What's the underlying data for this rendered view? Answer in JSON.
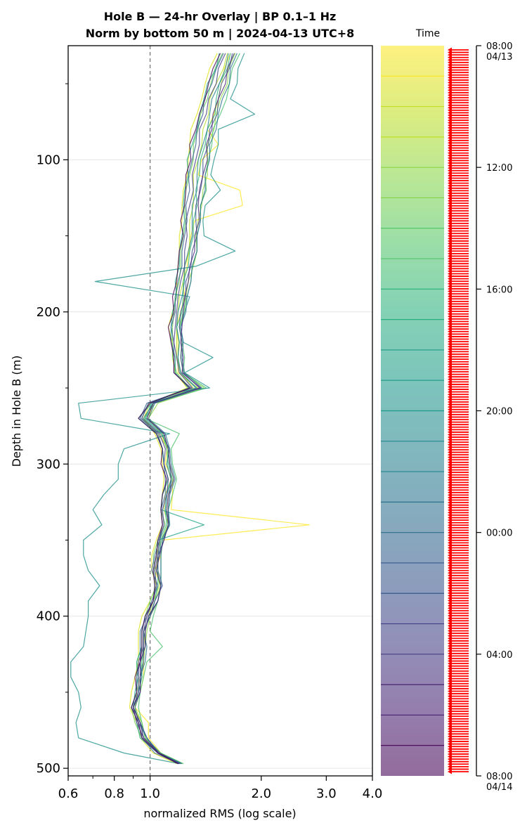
{
  "chart_data": {
    "type": "line",
    "title_line1": "Hole B — 24-hr Overlay  |  BP 0.1–1 Hz",
    "title_line2": "Norm by bottom 50 m  |  2024-04-13 UTC+8",
    "xlabel": "normalized RMS  (log scale)",
    "ylabel": "Depth in Hole B (m)",
    "x_scale": "log",
    "xlim": [
      0.6,
      4.0
    ],
    "ylim": [
      505,
      25
    ],
    "x_ticks": [
      0.6,
      0.8,
      1.0,
      2.0,
      3.0,
      4.0
    ],
    "x_tick_labels": [
      "0.6",
      "0.8",
      "1.0",
      "2.0",
      "3.0",
      "4.0"
    ],
    "y_ticks": [
      100,
      200,
      300,
      400,
      500
    ],
    "y_tick_labels": [
      "100",
      "200",
      "300",
      "400",
      "500"
    ],
    "reference_line_x": 1.0,
    "grid": "horizontal",
    "depth_grid_m": [
      30,
      40,
      50,
      60,
      70,
      80,
      90,
      100,
      110,
      120,
      130,
      140,
      150,
      160,
      170,
      180,
      190,
      200,
      210,
      220,
      230,
      240,
      250,
      260,
      270,
      280,
      290,
      300,
      310,
      320,
      330,
      340,
      350,
      360,
      370,
      380,
      390,
      400,
      410,
      420,
      430,
      440,
      450,
      460,
      470,
      480,
      490,
      497
    ],
    "base_profile_rms": [
      1.6,
      1.55,
      1.5,
      1.45,
      1.42,
      1.38,
      1.35,
      1.33,
      1.31,
      1.3,
      1.28,
      1.27,
      1.26,
      1.25,
      1.23,
      1.21,
      1.2,
      1.18,
      1.16,
      1.17,
      1.18,
      1.19,
      1.3,
      1.0,
      0.95,
      1.05,
      1.1,
      1.1,
      1.12,
      1.1,
      1.08,
      1.1,
      1.06,
      1.04,
      1.03,
      1.05,
      1.02,
      0.98,
      0.95,
      0.96,
      0.94,
      0.93,
      0.92,
      0.9,
      0.93,
      0.96,
      1.05,
      1.2
    ],
    "series": [
      {
        "t": "08:00",
        "color": "#fde725",
        "dev": [
          0.05,
          0.04,
          0.06,
          0.08,
          0.07,
          0.05,
          0.18,
          0.05,
          0.04,
          0.45,
          0.5,
          0.05,
          0.03,
          0.02,
          0.03,
          0.02,
          0.04,
          0.03,
          0.02,
          0.02,
          0.01,
          0.0,
          0.05,
          0.02,
          0.04,
          0.02,
          0.01,
          0.0,
          0.03,
          0.05,
          0.06,
          1.6,
          0.02,
          0.03,
          0.0,
          0.02,
          0.03,
          0.02,
          0.01,
          0.0,
          0.02,
          0.03,
          0.02,
          0.01,
          0.06,
          0.03,
          0.02,
          0.0
        ]
      },
      {
        "t": "09:00",
        "color": "#dfe318",
        "dev": [
          -0.08,
          -0.1,
          -0.09,
          -0.07,
          -0.08,
          -0.09,
          -0.07,
          -0.06,
          -0.05,
          -0.07,
          -0.06,
          -0.05,
          -0.06,
          -0.05,
          -0.04,
          -0.03,
          -0.02,
          -0.03,
          -0.04,
          -0.02,
          -0.03,
          -0.02,
          -0.04,
          0.0,
          0.01,
          -0.02,
          -0.03,
          -0.02,
          -0.03,
          -0.02,
          -0.01,
          -0.02,
          -0.02,
          -0.03,
          -0.02,
          -0.01,
          -0.02,
          -0.03,
          -0.02,
          -0.03,
          -0.01,
          -0.02,
          -0.03,
          -0.02,
          -0.01,
          -0.02,
          -0.03,
          -0.02
        ]
      },
      {
        "t": "10:00",
        "color": "#b5de2b",
        "dev": [
          0.02,
          0.03,
          0.01,
          0.0,
          0.02,
          0.01,
          0.03,
          0.02,
          0.0,
          0.01,
          0.03,
          0.01,
          0.02,
          0.03,
          0.01,
          0.02,
          0.0,
          0.01,
          0.02,
          0.01,
          0.0,
          0.02,
          0.01,
          0.02,
          0.01,
          0.0,
          0.02,
          0.01,
          0.02,
          0.0,
          0.01,
          0.02,
          0.01,
          0.0,
          0.02,
          0.01,
          0.0,
          0.01,
          0.02,
          0.0,
          0.01,
          0.02,
          0.01,
          0.0,
          0.02,
          0.01,
          0.0,
          0.01
        ]
      },
      {
        "t": "11:00",
        "color": "#8fd744",
        "dev": [
          0.1,
          0.08,
          0.12,
          0.1,
          0.09,
          0.11,
          0.08,
          0.1,
          0.12,
          0.09,
          0.1,
          0.08,
          0.07,
          0.09,
          0.08,
          0.06,
          0.05,
          0.06,
          0.04,
          0.05,
          0.03,
          0.04,
          0.1,
          0.05,
          0.04,
          0.03,
          0.02,
          0.03,
          0.04,
          0.02,
          0.03,
          0.02,
          0.01,
          0.02,
          0.01,
          0.02,
          0.01,
          0.02,
          0.03,
          0.01,
          0.02,
          0.01,
          0.0,
          0.01,
          0.02,
          0.01,
          0.02,
          0.03
        ]
      },
      {
        "t": "12:00",
        "color": "#6ccd5a",
        "dev": [
          -0.03,
          -0.05,
          -0.04,
          -0.02,
          -0.05,
          -0.03,
          -0.04,
          -0.02,
          -0.03,
          -0.05,
          -0.04,
          -0.02,
          -0.03,
          -0.04,
          -0.02,
          -0.01,
          -0.03,
          -0.02,
          -0.01,
          -0.02,
          -0.03,
          -0.01,
          -0.02,
          -0.01,
          0.0,
          -0.01,
          -0.02,
          -0.01,
          0.0,
          -0.02,
          -0.01,
          0.0,
          -0.01,
          -0.02,
          0.0,
          -0.01,
          -0.02,
          -0.01,
          0.0,
          -0.01,
          -0.02,
          -0.01,
          0.0,
          -0.01,
          -0.02,
          -0.01,
          0.0,
          -0.01
        ]
      },
      {
        "t": "13:00",
        "color": "#4ac16d",
        "dev": [
          0.15,
          0.12,
          0.14,
          0.16,
          0.13,
          0.1,
          0.12,
          0.11,
          0.1,
          0.12,
          0.09,
          0.1,
          0.08,
          0.09,
          0.07,
          0.08,
          0.06,
          0.05,
          0.04,
          0.05,
          0.06,
          0.04,
          0.12,
          0.03,
          0.02,
          0.15,
          0.04,
          0.05,
          0.06,
          0.05,
          0.04,
          0.03,
          0.02,
          0.03,
          0.04,
          0.02,
          0.03,
          0.04,
          0.05,
          0.12,
          0.04,
          0.03,
          0.02,
          0.03,
          0.02,
          0.01,
          0.02,
          0.03
        ]
      },
      {
        "t": "14:00",
        "color": "#2db27d",
        "dev": [
          0.05,
          0.07,
          0.04,
          0.06,
          0.08,
          0.05,
          0.06,
          0.04,
          0.05,
          0.03,
          0.06,
          0.04,
          0.05,
          0.03,
          0.04,
          0.02,
          0.03,
          0.04,
          0.02,
          0.03,
          0.01,
          0.02,
          0.04,
          0.01,
          0.02,
          0.03,
          0.01,
          0.02,
          0.03,
          0.01,
          0.02,
          0.01,
          0.0,
          0.01,
          0.02,
          0.0,
          0.01,
          0.02,
          0.01,
          0.0,
          0.01,
          0.02,
          0.01,
          0.0,
          0.01,
          0.0,
          0.01,
          0.02
        ]
      },
      {
        "t": "15:00",
        "color": "#1fa187",
        "dev": [
          -0.06,
          -0.04,
          -0.07,
          -0.05,
          -0.06,
          -0.04,
          -0.05,
          -0.07,
          -0.04,
          -0.06,
          -0.05,
          -0.03,
          -0.04,
          -0.05,
          -0.03,
          -0.04,
          -0.02,
          -0.03,
          -0.02,
          -0.03,
          -0.01,
          -0.02,
          -0.03,
          0.01,
          -0.02,
          -0.01,
          -0.02,
          -0.01,
          0.0,
          -0.02,
          -0.01,
          0.3,
          -0.01,
          0.0,
          -0.01,
          -0.02,
          0.0,
          -0.01,
          0.0,
          -0.01,
          -0.02,
          0.0,
          -0.01,
          0.0,
          -0.01,
          -0.02,
          0.0,
          -0.01
        ]
      },
      {
        "t": "16:00",
        "color": "#21918c",
        "dev": [
          0.2,
          0.18,
          0.22,
          0.2,
          0.5,
          0.15,
          0.18,
          0.16,
          0.15,
          0.25,
          0.13,
          0.12,
          0.14,
          0.45,
          0.1,
          -0.5,
          0.08,
          0.06,
          0.05,
          0.06,
          0.3,
          0.05,
          0.15,
          -0.36,
          -0.3,
          0.08,
          -0.25,
          -0.28,
          -0.3,
          -0.35,
          -0.38,
          -0.36,
          -0.4,
          -0.38,
          -0.35,
          -0.32,
          -0.34,
          -0.3,
          -0.28,
          -0.3,
          -0.34,
          -0.32,
          -0.28,
          -0.25,
          -0.3,
          -0.32,
          -0.2,
          0.0
        ]
      },
      {
        "t": "17:00",
        "color": "#277f8e",
        "dev": [
          0.03,
          0.05,
          0.04,
          0.02,
          0.03,
          0.05,
          0.04,
          0.02,
          0.03,
          0.04,
          0.02,
          0.03,
          0.04,
          0.02,
          0.01,
          0.03,
          0.02,
          0.01,
          0.02,
          0.03,
          0.01,
          0.02,
          0.03,
          0.02,
          0.01,
          0.02,
          0.03,
          0.01,
          0.02,
          0.01,
          0.02,
          0.03,
          0.01,
          0.02,
          0.01,
          0.02,
          0.03,
          0.01,
          0.02,
          0.01,
          0.0,
          0.02,
          0.01,
          0.0,
          0.01,
          0.02,
          0.0,
          0.01
        ]
      },
      {
        "t": "18:00",
        "color": "#2c728e",
        "dev": [
          0.12,
          0.1,
          0.14,
          0.12,
          0.11,
          0.13,
          0.1,
          0.12,
          0.1,
          0.11,
          0.09,
          0.1,
          0.08,
          0.09,
          0.07,
          0.08,
          0.06,
          0.07,
          0.05,
          0.06,
          0.04,
          0.05,
          0.08,
          0.03,
          0.04,
          0.05,
          0.03,
          0.04,
          0.05,
          0.03,
          0.04,
          0.03,
          0.02,
          0.03,
          0.04,
          0.02,
          0.03,
          0.02,
          0.01,
          0.02,
          0.03,
          0.01,
          0.02,
          0.01,
          0.0,
          0.02,
          0.01,
          0.02
        ]
      },
      {
        "t": "19:00",
        "color": "#33638d",
        "dev": [
          -0.02,
          -0.04,
          -0.03,
          -0.05,
          -0.03,
          -0.04,
          -0.02,
          -0.03,
          -0.04,
          -0.02,
          -0.03,
          -0.01,
          -0.02,
          -0.03,
          -0.01,
          -0.02,
          -0.03,
          -0.01,
          -0.02,
          -0.01,
          -0.02,
          -0.03,
          -0.01,
          -0.02,
          -0.01,
          0.0,
          -0.02,
          -0.01,
          -0.02,
          0.0,
          -0.01,
          -0.02,
          0.0,
          -0.01,
          -0.02,
          0.0,
          -0.01,
          0.0,
          -0.01,
          -0.02,
          0.0,
          -0.01,
          0.0,
          -0.01,
          0.0,
          -0.01,
          -0.02,
          0.0
        ]
      },
      {
        "t": "20:00",
        "color": "#3b528b",
        "dev": [
          0.07,
          0.09,
          0.06,
          0.08,
          0.1,
          0.07,
          0.09,
          0.06,
          0.08,
          0.07,
          0.05,
          0.06,
          0.08,
          0.05,
          0.06,
          0.04,
          0.05,
          0.03,
          0.04,
          0.05,
          0.03,
          0.04,
          0.06,
          0.02,
          0.03,
          0.04,
          0.02,
          0.03,
          0.02,
          0.03,
          0.04,
          0.02,
          0.03,
          0.01,
          0.02,
          0.03,
          0.01,
          0.02,
          0.01,
          0.0,
          0.02,
          0.01,
          0.02,
          0.0,
          0.01,
          0.02,
          0.0,
          0.01
        ]
      },
      {
        "t": "21:00",
        "color": "#433e85",
        "dev": [
          0.0,
          -0.02,
          0.01,
          -0.01,
          0.0,
          -0.02,
          0.01,
          0.0,
          -0.01,
          0.01,
          0.0,
          -0.02,
          0.0,
          -0.01,
          0.01,
          0.0,
          -0.01,
          0.0,
          0.01,
          -0.01,
          0.0,
          0.01,
          0.0,
          -0.01,
          0.0,
          0.01,
          0.0,
          -0.01,
          0.0,
          0.01,
          0.0,
          -0.01,
          0.0,
          0.01,
          0.0,
          -0.01,
          0.0,
          0.0,
          0.01,
          0.0,
          -0.01,
          0.0,
          0.01,
          0.0,
          -0.01,
          0.0,
          0.0,
          0.0
        ]
      },
      {
        "t": "22:00",
        "color": "#482878",
        "dev": [
          0.09,
          0.07,
          0.1,
          0.08,
          0.06,
          0.09,
          0.07,
          0.1,
          0.08,
          0.06,
          0.07,
          0.09,
          0.06,
          0.07,
          0.05,
          0.06,
          0.04,
          0.05,
          0.06,
          0.04,
          0.05,
          0.03,
          0.07,
          0.02,
          0.03,
          0.04,
          0.02,
          0.03,
          0.04,
          0.02,
          0.03,
          0.02,
          0.03,
          0.02,
          0.01,
          0.02,
          0.03,
          0.01,
          0.02,
          0.01,
          0.0,
          0.01,
          0.02,
          0.0,
          0.01,
          0.0,
          0.01,
          0.0
        ]
      },
      {
        "t": "23:00",
        "color": "#440154",
        "dev": [
          -0.05,
          -0.07,
          -0.06,
          -0.04,
          -0.06,
          -0.05,
          -0.07,
          -0.04,
          -0.06,
          -0.05,
          -0.04,
          -0.06,
          -0.03,
          -0.05,
          -0.04,
          -0.03,
          -0.05,
          -0.02,
          -0.04,
          -0.03,
          -0.02,
          -0.03,
          -0.02,
          0.0,
          -0.02,
          -0.01,
          -0.02,
          -0.03,
          -0.01,
          -0.02,
          -0.01,
          -0.02,
          -0.01,
          0.0,
          -0.01,
          -0.02,
          0.0,
          -0.01,
          0.0,
          -0.01,
          0.0,
          -0.02,
          0.0,
          -0.01,
          0.0,
          -0.01,
          0.0,
          -0.01
        ]
      }
    ],
    "colorbar": {
      "label": "Time",
      "tick_labels": [
        "08:00\n04/13",
        "12:00",
        "16:00",
        "20:00",
        "00:00",
        "04:00",
        "08:00\n04/14"
      ],
      "n_bands": 24,
      "n_arrows": 288,
      "arrow_color": "#ff0000",
      "cmap": [
        "#440154",
        "#482173",
        "#433e85",
        "#38588c",
        "#2d708e",
        "#25858e",
        "#1e9b8a",
        "#2ab07f",
        "#52c569",
        "#86d549",
        "#c2df23",
        "#fde725"
      ]
    }
  }
}
